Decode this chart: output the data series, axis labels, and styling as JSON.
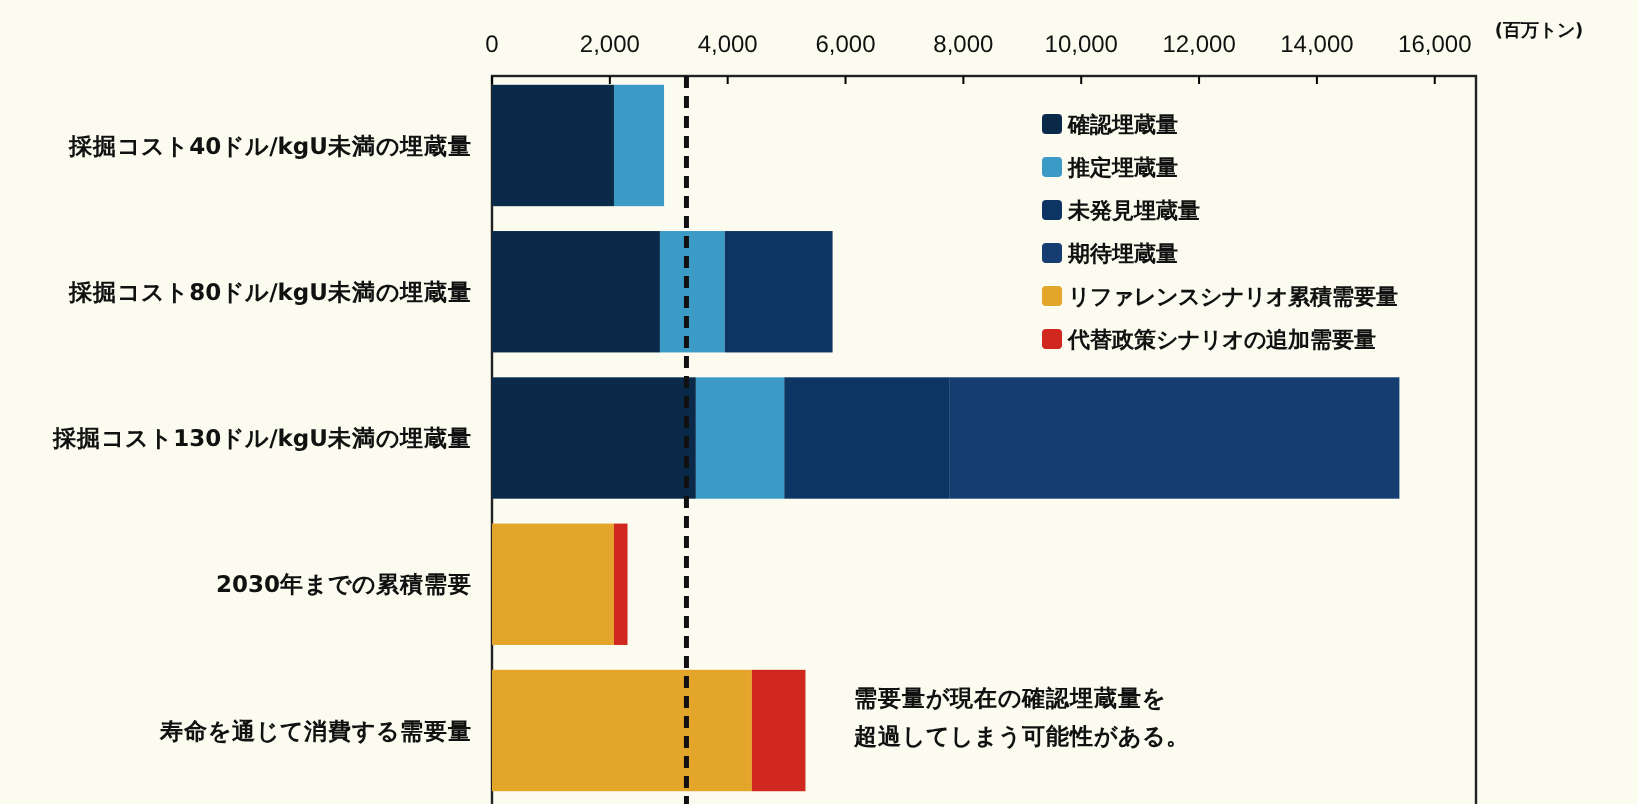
{
  "chart_data": {
    "type": "bar",
    "orientation": "horizontal",
    "stacked": true,
    "xlabel": "(百万トン)",
    "categories": [
      "採掘コスト40ドル/kgU未満の埋蔵量",
      "採掘コスト80ドル/kgU未満の埋蔵量",
      "採掘コスト130ドル/kgU未満の埋蔵量",
      "2030年までの累積需要",
      "寿命を通じて消費する需要量"
    ],
    "series": [
      {
        "name": "確認埋蔵量",
        "color": "#0b2a4a",
        "values": [
          2070,
          2850,
          3460,
          null,
          null
        ]
      },
      {
        "name": "推定埋蔵量",
        "color": "#3b9ac6",
        "values": [
          850,
          1100,
          1500,
          null,
          null
        ]
      },
      {
        "name": "未発見埋蔵量",
        "color": "#0c3563",
        "values": [
          null,
          1830,
          2810,
          null,
          null
        ]
      },
      {
        "name": "期待埋蔵量",
        "color": "#153d72",
        "values": [
          null,
          null,
          7630,
          null,
          null
        ]
      },
      {
        "name": "リファレンスシナリオ累積需要量",
        "color": "#e3a52a",
        "values": [
          null,
          null,
          null,
          2070,
          4410
        ]
      },
      {
        "name": "代替政策シナリオの追加需要量",
        "color": "#d0281e",
        "values": [
          null,
          null,
          null,
          230,
          910
        ]
      }
    ],
    "xlim": [
      0,
      16700
    ],
    "xticks": [
      0,
      {
        "value": 2000,
        "label": "2,000"
      },
      {
        "value": 4000,
        "label": "4,000"
      },
      {
        "value": 6000,
        "label": "6,000"
      },
      {
        "value": 8000,
        "label": "8,000"
      },
      {
        "value": 10000,
        "label": "10,000"
      },
      {
        "value": 12000,
        "label": "12,000"
      },
      {
        "value": 14000,
        "label": "14,000"
      },
      {
        "value": 16000,
        "label": "16,000"
      }
    ],
    "ref_lines": [
      {
        "axis": "x",
        "value": 3300,
        "color": "#111111",
        "line_style": "dashed"
      }
    ],
    "annotations": [
      "需要量が現在の確認埋蔵量を",
      "超過してしまう可能性がある。"
    ],
    "legend": "top right",
    "grid": false
  }
}
